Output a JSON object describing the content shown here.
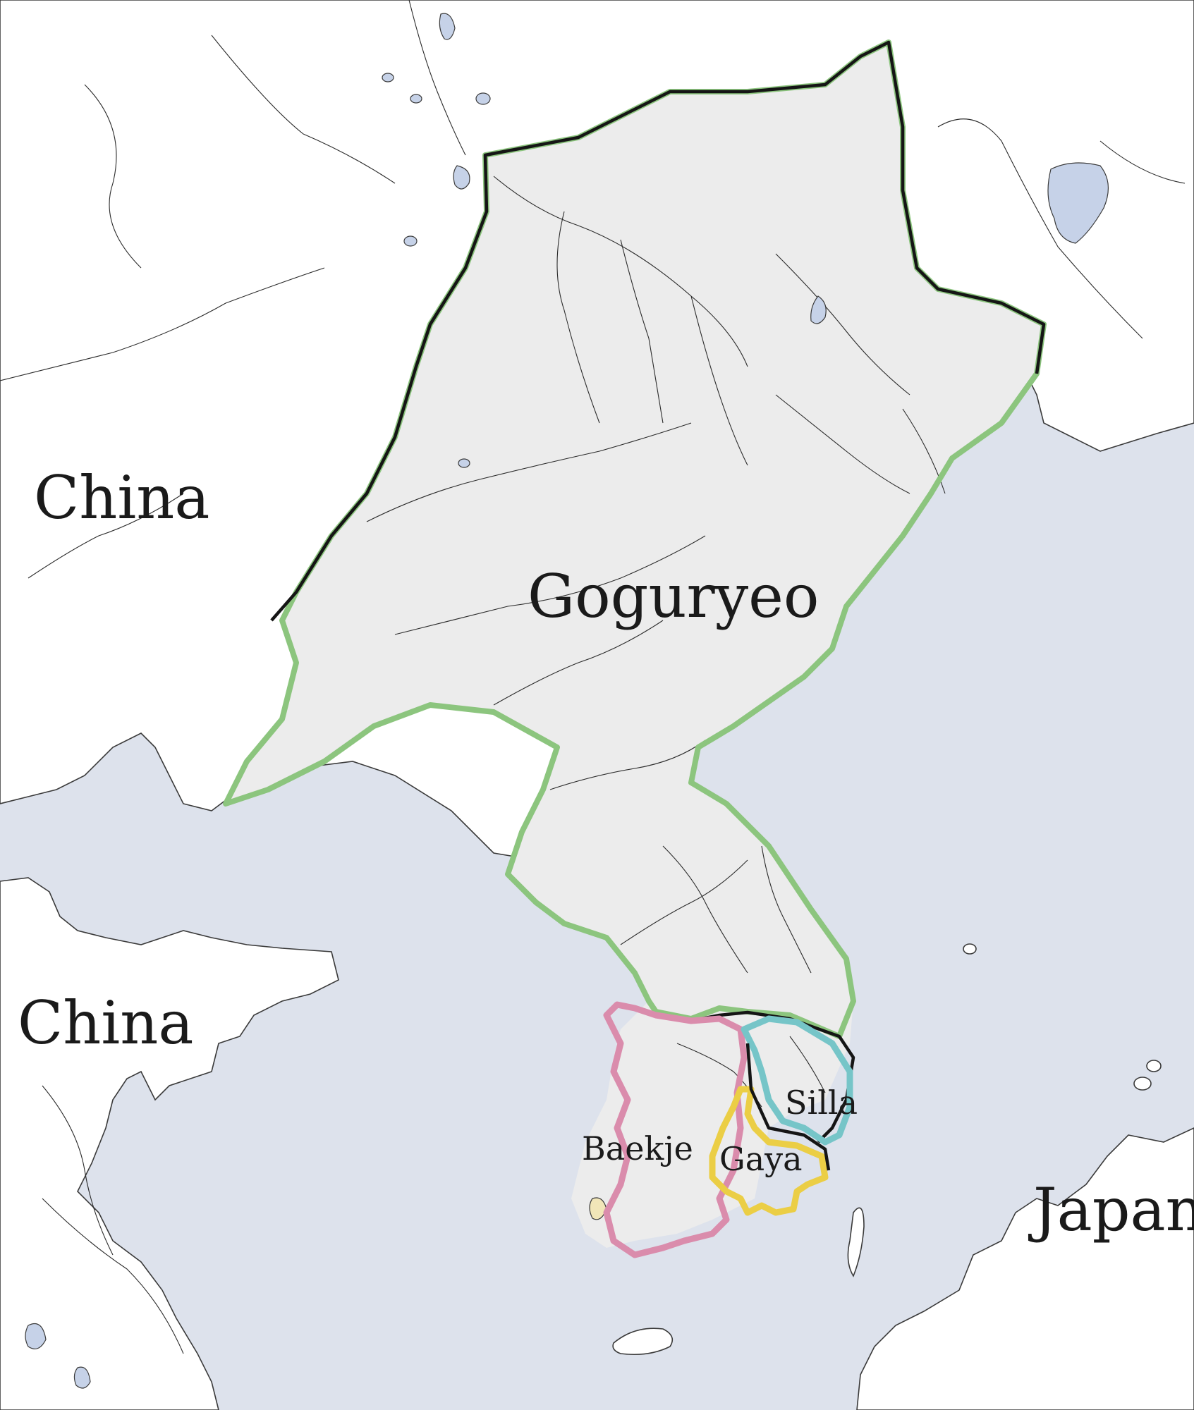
{
  "map": {
    "labels": {
      "china_north": "China",
      "china_south": "China",
      "goguryeo": "Goguryeo",
      "silla": "Silla",
      "baekje": "Baekje",
      "gaya": "Gaya",
      "japan": "Japan"
    },
    "colors": {
      "sea": "#dde2ec",
      "land": "#ffffff",
      "goguryeo_fill": "#ececec",
      "goguryeo_border": "#8cc57e",
      "baekje_border": "#da8cac",
      "silla_border": "#76c5c8",
      "gaya_border": "#ebce45",
      "outer_border": "#151515"
    }
  }
}
